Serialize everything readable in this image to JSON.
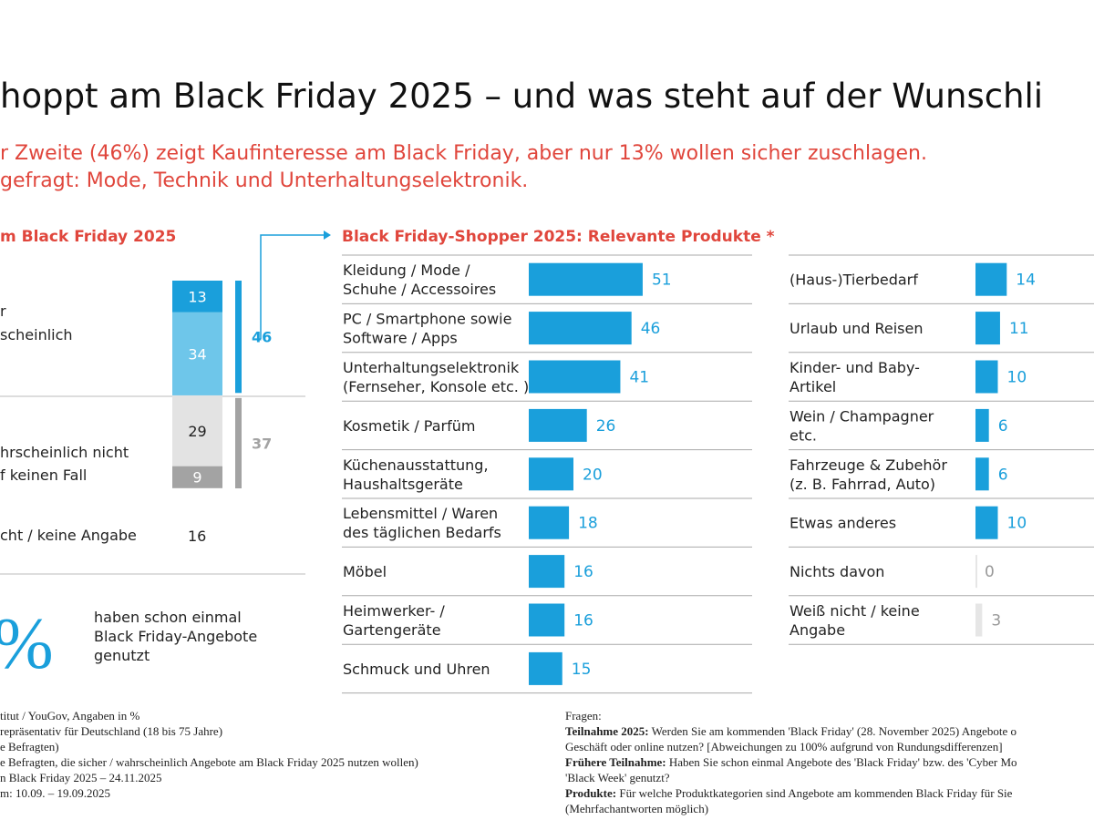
{
  "title": "hoppt am Black Friday 2025 – und was steht auf der Wunschli",
  "subtitle": [
    "r Zweite (46%) zeigt Kaufinteresse am Black Friday, aber nur 13% wollen sicher zuschlagen.",
    "gefragt: Mode, Technik und Unterhaltungselektronik."
  ],
  "chart_data": [
    {
      "type": "stacked_bar",
      "title": "m Black Friday 2025",
      "categories": [
        "r",
        "scheinlich",
        "hrscheinlich nicht",
        "f keinen Fall"
      ],
      "values": [
        13,
        34,
        29,
        9
      ],
      "colors": [
        "#1a9fdb",
        "#6ec6ea",
        "#e3e3e3",
        "#a3a3a3"
      ],
      "totals": [
        46,
        37
      ],
      "total_colors": [
        "#1a9fdb",
        "#a3a3a3"
      ],
      "extra_label": "cht / keine Angabe",
      "extra_value": 16
    },
    {
      "type": "bar",
      "title": "Black Friday-Shopper 2025: Relevante Produkte *",
      "categories": [
        "Kleidung / Mode /\nSchuhe / Accessoires",
        "PC / Smartphone sowie\nSoftware / Apps",
        "Unterhaltungselektronik\n(Fernseher, Konsole etc. )",
        "Kosmetik / Parfüm",
        "Küchenausstattung,\nHaushaltsgeräte",
        "Lebensmittel / Waren\ndes täglichen Bedarfs",
        "Möbel",
        "Heimwerker- /\nGartengeräte",
        "Schmuck und Uhren"
      ],
      "values": [
        51,
        46,
        41,
        26,
        20,
        18,
        16,
        16,
        15
      ],
      "color": "#1a9fdb"
    },
    {
      "type": "bar",
      "categories": [
        "(Haus-)Tierbedarf",
        "Urlaub und Reisen",
        "Kinder- und Baby-\nArtikel",
        "Wein / Champagner\netc.",
        "Fahrzeuge & Zubehör\n(z. B. Fahrrad, Auto)",
        "Etwas anderes",
        "Nichts davon",
        "Weiß nicht / keine\nAngabe"
      ],
      "values": [
        14,
        11,
        10,
        6,
        6,
        10,
        0,
        3
      ],
      "colors": [
        "#1a9fdb",
        "#1a9fdb",
        "#1a9fdb",
        "#1a9fdb",
        "#1a9fdb",
        "#1a9fdb",
        "#e6e6e6",
        "#e6e6e6"
      ]
    }
  ],
  "share": {
    "figure": "%",
    "text": [
      "haben schon einmal",
      "Black Friday-Angebote",
      "genutzt"
    ]
  },
  "footnotes": {
    "left": [
      "titut / YouGov, Angaben in %",
      "repräsentativ für Deutschland (18 bis 75 Jahre)",
      "e Befragten)",
      "e Befragten, die sicher / wahrscheinlich Angebote am Black Friday 2025 nutzen wollen)",
      "n Black Friday 2025 – 24.11.2025",
      "m: 10.09. – 19.09.2025"
    ],
    "right": [
      {
        "text": "Fragen:"
      },
      {
        "bold": "Teilnahme 2025:",
        "text": " Werden Sie am kommenden 'Black Friday' (28. November 2025) Angebote o"
      },
      {
        "text": "Geschäft oder online nutzen? [Abweichungen zu 100% aufgrund von Rundungsdifferenzen]"
      },
      {
        "bold": "Frühere Teilnahme:",
        "text": " Haben Sie schon einmal Angebote des 'Black Friday' bzw. des 'Cyber Mo"
      },
      {
        "text": "'Black Week' genutzt?"
      },
      {
        "bold": "Produkte:",
        "text": " Für welche Produktkategorien sind Angebote am kommenden Black Friday für Sie"
      },
      {
        "text": "(Mehrfachantworten möglich)"
      }
    ]
  }
}
